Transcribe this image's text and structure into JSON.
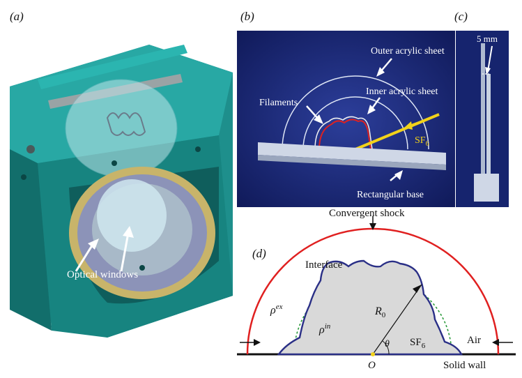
{
  "figure": {
    "panel_labels": {
      "a": "(a)",
      "b": "(b)",
      "c": "(c)",
      "d": "(d)"
    },
    "panel_a": {
      "optical_windows": "Optical windows"
    },
    "panel_b": {
      "outer_sheet": "Outer acrylic sheet",
      "inner_sheet": "Inner acrylic sheet",
      "filaments": "Filaments",
      "gas": "SF",
      "gas_sub": "6",
      "base": "Rectangular base"
    },
    "panel_c": {
      "scale": "5 mm"
    },
    "panel_d": {
      "shock": "Convergent shock",
      "interface": "Interface",
      "rho_ex_base": "ρ",
      "rho_ex_sup": "ex",
      "rho_in_base": "ρ",
      "rho_in_sup": "in",
      "radius_base": "R",
      "radius_sub": "0",
      "angle": "θ",
      "gas": "SF",
      "gas_sub": "6",
      "air": "Air",
      "origin": "O",
      "wall": "Solid wall"
    },
    "colors": {
      "shock": "#e02020",
      "interface": "#2a2f86",
      "initial_circle": "#2a9a3a",
      "gas_fill": "#d9d9d9",
      "acrylic_teal": "#1a9a96"
    }
  }
}
